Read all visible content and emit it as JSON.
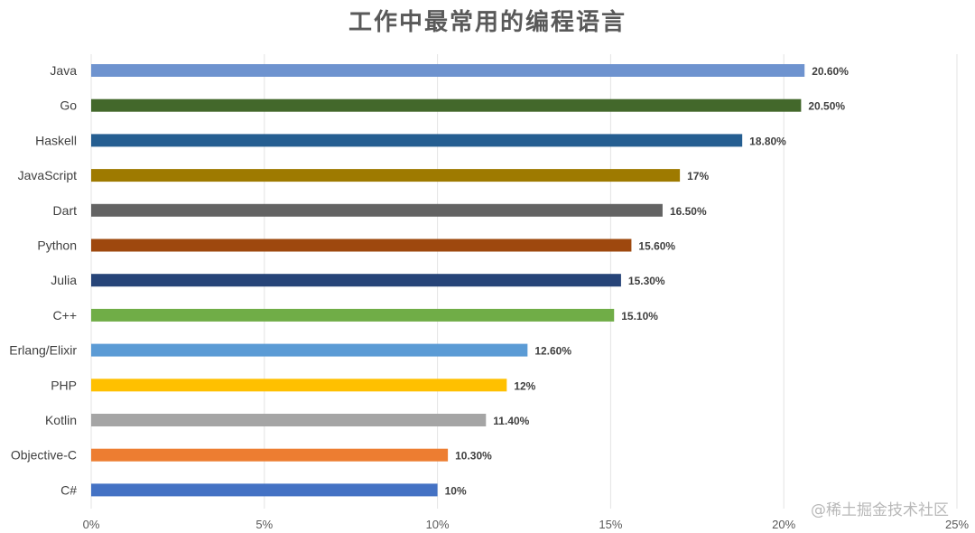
{
  "chart_data": {
    "type": "bar",
    "orientation": "horizontal",
    "title": "工作中最常用的编程语言",
    "categories": [
      "Java",
      "Go",
      "Haskell",
      "JavaScript",
      "Dart",
      "Python",
      "Julia",
      "C++",
      "Erlang/Elixir",
      "PHP",
      "Kotlin",
      "Objective-C",
      "C#"
    ],
    "values": [
      20.6,
      20.5,
      18.8,
      17,
      16.5,
      15.6,
      15.3,
      15.1,
      12.6,
      12,
      11.4,
      10.3,
      10
    ],
    "data_labels": [
      "20.60%",
      "20.50%",
      "18.80%",
      "17%",
      "16.50%",
      "15.60%",
      "15.30%",
      "15.10%",
      "12.60%",
      "12%",
      "11.40%",
      "10.30%",
      "10%"
    ],
    "colors": [
      "#6e93cf",
      "#43682b",
      "#255e91",
      "#9e7a00",
      "#636363",
      "#9e480e",
      "#264478",
      "#70ad47",
      "#5b9bd5",
      "#ffc000",
      "#a5a5a5",
      "#ed7d31",
      "#4472c4"
    ],
    "x_ticks": [
      0,
      5,
      10,
      15,
      20,
      25
    ],
    "x_tick_labels": [
      "0%",
      "5%",
      "10%",
      "15%",
      "20%",
      "25%"
    ],
    "xlim": [
      0,
      25
    ],
    "xlabel": "",
    "ylabel": "",
    "grid": "vertical",
    "legend": "none"
  },
  "watermark": "@稀土掘金技术社区"
}
